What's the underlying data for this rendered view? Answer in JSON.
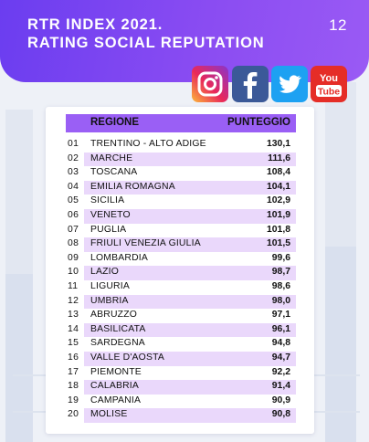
{
  "header": {
    "title_line1": "RTR INDEX 2021.",
    "title_line2": "RATING SOCIAL REPUTATION",
    "page_number": "12",
    "background_color": "#7b45f2"
  },
  "social_icons": [
    {
      "name": "instagram-icon",
      "color": "#d62976"
    },
    {
      "name": "facebook-icon",
      "color": "#3b5998"
    },
    {
      "name": "twitter-icon",
      "color": "#1da1f2"
    },
    {
      "name": "youtube-icon",
      "color": "#e52d27",
      "text_line1": "You",
      "text_line2": "Tube"
    }
  ],
  "table": {
    "header_region": "REGIONE",
    "header_score": "PUNTEGGIO",
    "header_color": "#9a5ff5",
    "stripe_color": "#ead8fb",
    "rows": [
      {
        "rank": "01",
        "region": "TRENTINO - ALTO ADIGE",
        "score": "130,1"
      },
      {
        "rank": "02",
        "region": "MARCHE",
        "score": "111,6"
      },
      {
        "rank": "03",
        "region": "TOSCANA",
        "score": "108,4"
      },
      {
        "rank": "04",
        "region": "EMILIA ROMAGNA",
        "score": "104,1"
      },
      {
        "rank": "05",
        "region": "SICILIA",
        "score": "102,9"
      },
      {
        "rank": "06",
        "region": "VENETO",
        "score": "101,9"
      },
      {
        "rank": "07",
        "region": "PUGLIA",
        "score": "101,8"
      },
      {
        "rank": "08",
        "region": "FRIULI VENEZIA GIULIA",
        "score": "101,5"
      },
      {
        "rank": "09",
        "region": "LOMBARDIA",
        "score": "99,6"
      },
      {
        "rank": "10",
        "region": "LAZIO",
        "score": "98,7"
      },
      {
        "rank": "11",
        "region": "LIGURIA",
        "score": "98,6"
      },
      {
        "rank": "12",
        "region": "UMBRIA",
        "score": "98,0"
      },
      {
        "rank": "13",
        "region": "ABRUZZO",
        "score": "97,1"
      },
      {
        "rank": "14",
        "region": "BASILICATA",
        "score": "96,1"
      },
      {
        "rank": "15",
        "region": "SARDEGNA",
        "score": "94,8"
      },
      {
        "rank": "16",
        "region": "VALLE D'AOSTA",
        "score": "94,7"
      },
      {
        "rank": "17",
        "region": "PIEMONTE",
        "score": "92,2"
      },
      {
        "rank": "18",
        "region": "CALABRIA",
        "score": "91,4"
      },
      {
        "rank": "19",
        "region": "CAMPANIA",
        "score": "90,9"
      },
      {
        "rank": "20",
        "region": "MOLISE",
        "score": "90,8"
      }
    ]
  }
}
